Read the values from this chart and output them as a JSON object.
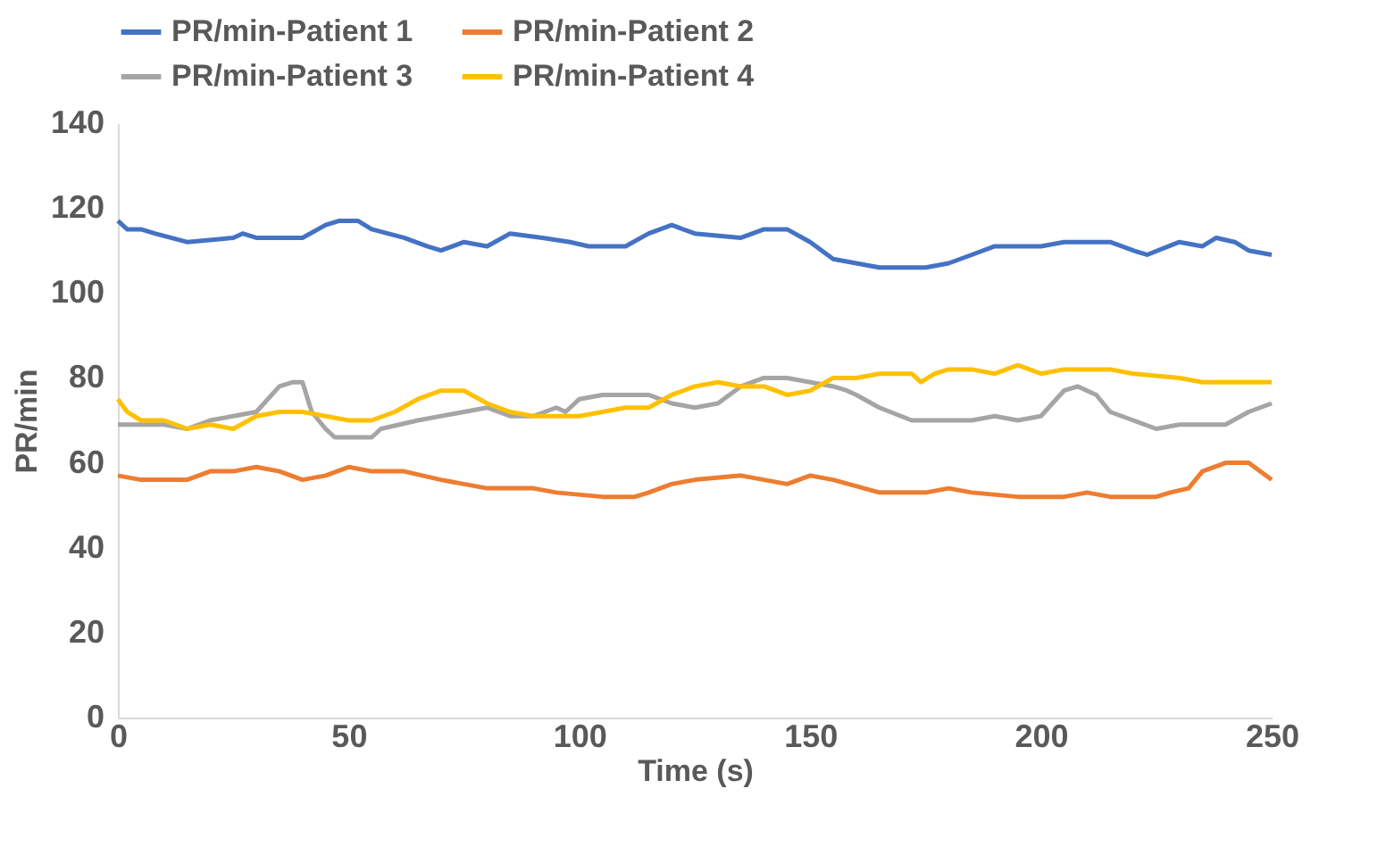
{
  "chart_data": {
    "type": "line",
    "xlabel": "Time (s)",
    "ylabel": "PR/min",
    "xlim": [
      0,
      250
    ],
    "xticks": [
      0,
      50,
      100,
      150,
      200,
      250
    ],
    "ylim": [
      0,
      140
    ],
    "yticks": [
      0,
      20,
      40,
      60,
      80,
      100,
      120,
      140
    ],
    "grid": false,
    "legend": "top",
    "marker": "none",
    "line_style": "solid",
    "series": [
      {
        "name": "PR/min-Patient 1",
        "color": "#4472c4",
        "x": [
          0,
          2,
          5,
          8,
          15,
          25,
          27,
          30,
          40,
          45,
          48,
          52,
          55,
          62,
          67,
          70,
          75,
          80,
          85,
          92,
          98,
          102,
          110,
          115,
          120,
          125,
          135,
          140,
          145,
          150,
          155,
          160,
          165,
          175,
          180,
          185,
          190,
          200,
          205,
          215,
          220,
          223,
          230,
          235,
          238,
          242,
          245,
          250
        ],
        "values": [
          117,
          115,
          115,
          114,
          112,
          113,
          114,
          113,
          113,
          116,
          117,
          117,
          115,
          113,
          111,
          110,
          112,
          111,
          114,
          113,
          112,
          111,
          111,
          114,
          116,
          114,
          113,
          115,
          115,
          112,
          108,
          107,
          106,
          106,
          107,
          109,
          111,
          111,
          112,
          112,
          110,
          109,
          112,
          111,
          113,
          112,
          110,
          109
        ]
      },
      {
        "name": "PR/min-Patient 2",
        "color": "#ed7d31",
        "x": [
          0,
          5,
          15,
          20,
          25,
          30,
          35,
          40,
          45,
          50,
          55,
          62,
          70,
          75,
          80,
          90,
          95,
          105,
          112,
          115,
          120,
          125,
          135,
          140,
          145,
          150,
          155,
          165,
          175,
          180,
          185,
          195,
          205,
          210,
          215,
          225,
          228,
          232,
          235,
          240,
          245,
          250
        ],
        "values": [
          57,
          56,
          56,
          58,
          58,
          59,
          58,
          56,
          57,
          59,
          58,
          58,
          56,
          55,
          54,
          54,
          53,
          52,
          52,
          53,
          55,
          56,
          57,
          56,
          55,
          57,
          56,
          53,
          53,
          54,
          53,
          52,
          52,
          53,
          52,
          52,
          53,
          54,
          58,
          60,
          60,
          56
        ]
      },
      {
        "name": "PR/min-Patient 3",
        "color": "#a5a5a5",
        "x": [
          0,
          10,
          15,
          20,
          25,
          30,
          35,
          38,
          40,
          42,
          45,
          47,
          55,
          57,
          65,
          75,
          80,
          85,
          90,
          95,
          97,
          100,
          105,
          115,
          120,
          125,
          130,
          135,
          140,
          145,
          150,
          155,
          158,
          160,
          165,
          172,
          185,
          190,
          195,
          200,
          205,
          208,
          212,
          215,
          220,
          225,
          230,
          240,
          245,
          250
        ],
        "values": [
          69,
          69,
          68,
          70,
          71,
          72,
          78,
          79,
          79,
          72,
          68,
          66,
          66,
          68,
          70,
          72,
          73,
          71,
          71,
          73,
          72,
          75,
          76,
          76,
          74,
          73,
          74,
          78,
          80,
          80,
          79,
          78,
          77,
          76,
          73,
          70,
          70,
          71,
          70,
          71,
          77,
          78,
          76,
          72,
          70,
          68,
          69,
          69,
          72,
          74
        ]
      },
      {
        "name": "PR/min-Patient 4",
        "color": "#ffc000",
        "x": [
          0,
          2,
          5,
          10,
          15,
          20,
          25,
          30,
          35,
          40,
          45,
          50,
          55,
          60,
          65,
          70,
          75,
          80,
          85,
          90,
          100,
          105,
          110,
          115,
          120,
          125,
          130,
          135,
          140,
          145,
          150,
          155,
          160,
          165,
          172,
          174,
          177,
          180,
          185,
          190,
          195,
          200,
          205,
          215,
          220,
          230,
          235,
          245,
          250
        ],
        "values": [
          75,
          72,
          70,
          70,
          68,
          69,
          68,
          71,
          72,
          72,
          71,
          70,
          70,
          72,
          75,
          77,
          77,
          74,
          72,
          71,
          71,
          72,
          73,
          73,
          76,
          78,
          79,
          78,
          78,
          76,
          77,
          80,
          80,
          81,
          81,
          79,
          81,
          82,
          82,
          81,
          83,
          81,
          82,
          82,
          81,
          80,
          79,
          79,
          79
        ]
      }
    ]
  }
}
